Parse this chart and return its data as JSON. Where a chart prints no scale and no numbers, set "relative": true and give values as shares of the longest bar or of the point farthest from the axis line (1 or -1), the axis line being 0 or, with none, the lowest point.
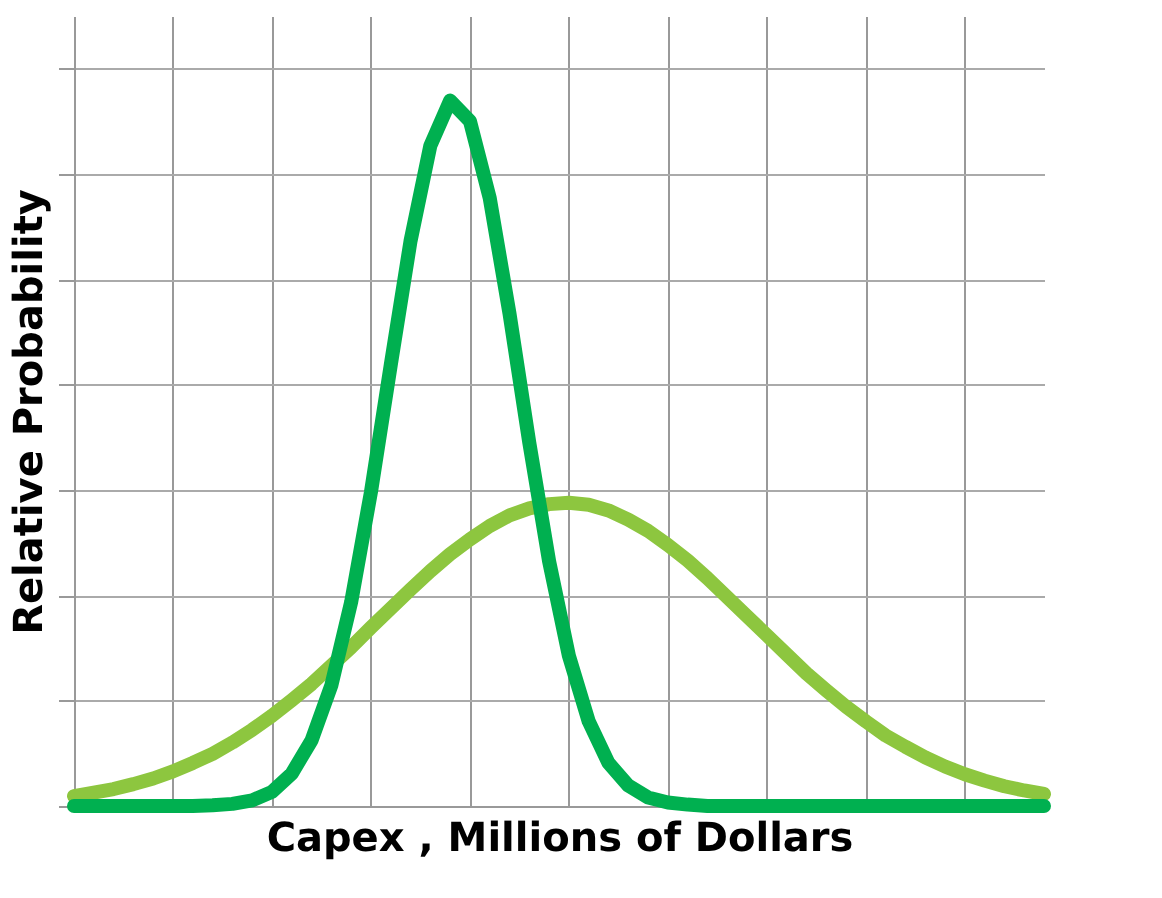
{
  "chart_data": {
    "type": "line",
    "xlabel": "Capex , Millions of Dollars",
    "ylabel": "Relative Probability",
    "relative": true,
    "grid": true,
    "tick_labels": false,
    "marker": "none",
    "line_style": "solid",
    "categories": [
      null,
      null,
      null,
      null,
      null,
      null,
      null,
      null,
      null,
      null,
      null,
      null,
      null,
      null,
      null,
      null,
      null,
      null,
      null,
      null,
      null,
      null,
      null,
      null,
      null,
      null,
      null,
      null,
      null,
      null,
      null,
      null,
      null,
      null,
      null,
      null,
      null,
      null,
      null,
      null,
      null,
      null,
      null,
      null,
      null,
      null,
      null,
      null,
      null,
      null
    ],
    "series": [
      {
        "color": "#8dc63f",
        "values": [
          0.014,
          0.019,
          0.024,
          0.031,
          0.039,
          0.049,
          0.061,
          0.074,
          0.09,
          0.108,
          0.128,
          0.15,
          0.173,
          0.199,
          0.225,
          0.253,
          0.28,
          0.307,
          0.333,
          0.357,
          0.378,
          0.397,
          0.412,
          0.422,
          0.428,
          0.43,
          0.427,
          0.419,
          0.406,
          0.39,
          0.37,
          0.348,
          0.323,
          0.296,
          0.269,
          0.242,
          0.215,
          0.188,
          0.164,
          0.141,
          0.12,
          0.1,
          0.084,
          0.069,
          0.056,
          0.045,
          0.036,
          0.028,
          0.022,
          0.017
        ]
      },
      {
        "color": "#00b050",
        "values": [
          0,
          0,
          0,
          0,
          0,
          0,
          0,
          0.001,
          0.003,
          0.008,
          0.02,
          0.046,
          0.093,
          0.171,
          0.289,
          0.445,
          0.625,
          0.801,
          0.936,
          1,
          0.971,
          0.862,
          0.698,
          0.515,
          0.347,
          0.213,
          0.12,
          0.061,
          0.029,
          0.012,
          0.005,
          0.002,
          0,
          0,
          0,
          0,
          0,
          0,
          0,
          0,
          0,
          0,
          0,
          0,
          0,
          0,
          0,
          0,
          0,
          0
        ]
      }
    ]
  }
}
